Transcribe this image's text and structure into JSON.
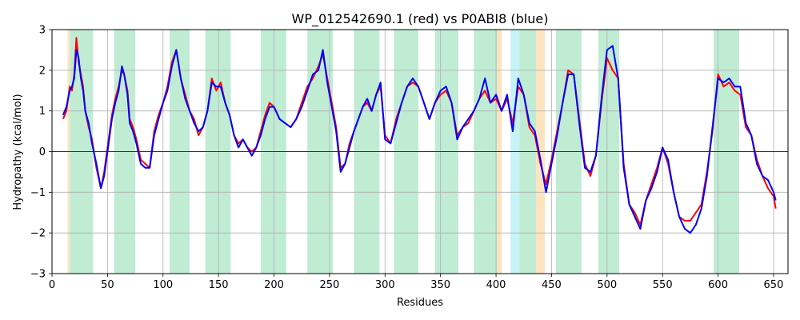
{
  "chart_data": {
    "type": "line",
    "title": "WP_012542690.1 (red) vs P0ABI8 (blue)",
    "xlabel": "Residues",
    "ylabel": "Hydropathy (kcal/mol)",
    "xlim": [
      0,
      663
    ],
    "ylim": [
      -3,
      3
    ],
    "xticks": [
      0,
      50,
      100,
      150,
      200,
      250,
      300,
      350,
      400,
      450,
      500,
      550,
      600,
      650
    ],
    "yticks": [
      -3,
      -2,
      -1,
      0,
      1,
      2,
      3
    ],
    "grid": true,
    "zero_line": true,
    "region_colors": {
      "both": "#c0ecd4",
      "red_only": "#fde4bf",
      "blue_only": "#c6f3f7"
    },
    "regions": [
      {
        "start": 14,
        "end": 16,
        "kind": "red_only"
      },
      {
        "start": 16,
        "end": 37,
        "kind": "both"
      },
      {
        "start": 56,
        "end": 75,
        "kind": "both"
      },
      {
        "start": 106,
        "end": 124,
        "kind": "both"
      },
      {
        "start": 138,
        "end": 161,
        "kind": "both"
      },
      {
        "start": 188,
        "end": 211,
        "kind": "both"
      },
      {
        "start": 230,
        "end": 253,
        "kind": "both"
      },
      {
        "start": 272,
        "end": 295,
        "kind": "both"
      },
      {
        "start": 308,
        "end": 330,
        "kind": "both"
      },
      {
        "start": 345,
        "end": 366,
        "kind": "both"
      },
      {
        "start": 380,
        "end": 401,
        "kind": "both"
      },
      {
        "start": 401,
        "end": 405,
        "kind": "red_only"
      },
      {
        "start": 413,
        "end": 421,
        "kind": "blue_only"
      },
      {
        "start": 421,
        "end": 436,
        "kind": "both"
      },
      {
        "start": 436,
        "end": 444,
        "kind": "red_only"
      },
      {
        "start": 454,
        "end": 477,
        "kind": "both"
      },
      {
        "start": 492,
        "end": 511,
        "kind": "both"
      },
      {
        "start": 596,
        "end": 619,
        "kind": "both"
      }
    ],
    "series": [
      {
        "color": "#ff0000",
        "x": [
          10,
          13,
          16,
          18,
          20,
          22,
          24,
          26,
          28,
          30,
          33,
          36,
          40,
          44,
          47,
          50,
          54,
          57,
          60,
          63,
          65,
          68,
          70,
          73,
          76,
          80,
          84,
          88,
          92,
          96,
          100,
          104,
          108,
          112,
          116,
          120,
          124,
          128,
          132,
          136,
          140,
          144,
          148,
          152,
          156,
          160,
          164,
          168,
          172,
          176,
          180,
          184,
          188,
          192,
          196,
          200,
          205,
          210,
          215,
          220,
          225,
          230,
          235,
          240,
          244,
          248,
          252,
          256,
          260,
          264,
          268,
          272,
          276,
          280,
          284,
          288,
          292,
          296,
          300,
          305,
          310,
          315,
          320,
          325,
          330,
          335,
          340,
          345,
          350,
          355,
          360,
          365,
          370,
          375,
          380,
          385,
          390,
          395,
          400,
          405,
          410,
          415,
          420,
          425,
          430,
          435,
          440,
          445,
          450,
          455,
          460,
          465,
          470,
          475,
          480,
          485,
          490,
          495,
          500,
          505,
          510,
          515,
          520,
          525,
          530,
          535,
          540,
          545,
          550,
          555,
          560,
          565,
          570,
          575,
          580,
          585,
          590,
          595,
          600,
          605,
          610,
          615,
          620,
          625,
          630,
          635,
          640,
          645,
          650,
          652
        ],
        "values": [
          0.8,
          1.0,
          1.6,
          1.5,
          1.9,
          2.8,
          2.2,
          1.9,
          1.6,
          1.0,
          0.6,
          0.3,
          -0.4,
          -0.9,
          -0.5,
          0.1,
          0.9,
          1.3,
          1.6,
          2.0,
          1.9,
          1.5,
          0.8,
          0.6,
          0.3,
          -0.2,
          -0.3,
          -0.4,
          0.5,
          0.9,
          1.2,
          1.6,
          2.2,
          2.5,
          1.8,
          1.4,
          1.0,
          0.8,
          0.4,
          0.6,
          1.0,
          1.8,
          1.5,
          1.7,
          1.2,
          0.9,
          0.4,
          0.2,
          0.3,
          0.1,
          0.0,
          0.1,
          0.5,
          0.9,
          1.2,
          1.1,
          0.8,
          0.7,
          0.6,
          0.8,
          1.2,
          1.6,
          1.8,
          2.1,
          2.4,
          1.8,
          1.2,
          0.6,
          -0.4,
          -0.3,
          0.2,
          0.5,
          0.8,
          1.1,
          1.2,
          1.0,
          1.4,
          1.6,
          0.4,
          0.2,
          0.8,
          1.2,
          1.6,
          1.7,
          1.6,
          1.2,
          0.8,
          1.2,
          1.4,
          1.5,
          1.2,
          0.4,
          0.6,
          0.7,
          1.0,
          1.3,
          1.5,
          1.2,
          1.3,
          1.0,
          1.3,
          0.7,
          1.6,
          1.4,
          0.6,
          0.4,
          -0.3,
          -0.8,
          -0.2,
          0.5,
          1.2,
          2.0,
          1.9,
          0.8,
          -0.3,
          -0.6,
          -0.1,
          1.2,
          2.3,
          2.0,
          1.8,
          -0.3,
          -1.3,
          -1.5,
          -1.8,
          -1.2,
          -0.8,
          -0.4,
          0.1,
          -0.3,
          -1.0,
          -1.6,
          -1.7,
          -1.7,
          -1.5,
          -1.3,
          -0.5,
          0.5,
          1.9,
          1.6,
          1.7,
          1.5,
          1.4,
          0.6,
          0.4,
          -0.2,
          -0.6,
          -0.9,
          -1.1,
          -1.4
        ]
      },
      {
        "color": "#0000ff",
        "x": [
          10,
          13,
          16,
          18,
          20,
          22,
          24,
          26,
          28,
          30,
          33,
          36,
          40,
          44,
          47,
          50,
          54,
          57,
          60,
          63,
          65,
          68,
          70,
          73,
          76,
          80,
          84,
          88,
          92,
          96,
          100,
          104,
          108,
          112,
          116,
          120,
          124,
          128,
          132,
          136,
          140,
          144,
          148,
          152,
          156,
          160,
          164,
          168,
          172,
          176,
          180,
          184,
          188,
          192,
          196,
          200,
          205,
          210,
          215,
          220,
          225,
          230,
          235,
          240,
          244,
          248,
          252,
          256,
          260,
          264,
          268,
          272,
          276,
          280,
          284,
          288,
          292,
          296,
          300,
          305,
          310,
          315,
          320,
          325,
          330,
          335,
          340,
          345,
          350,
          355,
          360,
          365,
          370,
          375,
          380,
          385,
          390,
          395,
          400,
          405,
          410,
          415,
          420,
          425,
          430,
          435,
          440,
          445,
          450,
          455,
          460,
          465,
          470,
          475,
          480,
          485,
          490,
          495,
          500,
          505,
          510,
          515,
          520,
          525,
          530,
          535,
          540,
          545,
          550,
          555,
          560,
          565,
          570,
          575,
          580,
          585,
          590,
          595,
          600,
          605,
          610,
          615,
          620,
          625,
          630,
          635,
          640,
          645,
          650,
          652
        ],
        "values": [
          0.9,
          1.1,
          1.5,
          1.6,
          1.8,
          2.5,
          2.3,
          1.8,
          1.5,
          1.0,
          0.7,
          0.2,
          -0.3,
          -0.9,
          -0.6,
          0.0,
          0.8,
          1.2,
          1.5,
          2.1,
          1.9,
          1.4,
          0.7,
          0.5,
          0.2,
          -0.3,
          -0.4,
          -0.4,
          0.4,
          0.8,
          1.2,
          1.5,
          2.1,
          2.5,
          1.8,
          1.3,
          1.0,
          0.7,
          0.5,
          0.6,
          1.0,
          1.7,
          1.6,
          1.6,
          1.2,
          0.9,
          0.4,
          0.1,
          0.3,
          0.1,
          -0.1,
          0.1,
          0.4,
          0.8,
          1.1,
          1.1,
          0.8,
          0.7,
          0.6,
          0.8,
          1.1,
          1.5,
          1.9,
          2.0,
          2.5,
          1.7,
          1.1,
          0.5,
          -0.5,
          -0.3,
          0.1,
          0.5,
          0.8,
          1.1,
          1.3,
          1.0,
          1.4,
          1.7,
          0.3,
          0.2,
          0.7,
          1.2,
          1.6,
          1.8,
          1.6,
          1.2,
          0.8,
          1.2,
          1.5,
          1.6,
          1.2,
          0.3,
          0.6,
          0.8,
          1.0,
          1.3,
          1.8,
          1.2,
          1.4,
          1.0,
          1.4,
          0.5,
          1.8,
          1.4,
          0.7,
          0.5,
          -0.2,
          -1.0,
          -0.3,
          0.4,
          1.2,
          1.9,
          1.9,
          0.7,
          -0.4,
          -0.5,
          -0.1,
          1.3,
          2.5,
          2.6,
          1.8,
          -0.4,
          -1.3,
          -1.6,
          -1.9,
          -1.2,
          -0.9,
          -0.5,
          0.1,
          -0.2,
          -1.0,
          -1.6,
          -1.9,
          -2.0,
          -1.8,
          -1.4,
          -0.6,
          0.6,
          1.8,
          1.7,
          1.8,
          1.6,
          1.6,
          0.7,
          0.4,
          -0.3,
          -0.6,
          -0.7,
          -1.0,
          -1.2
        ]
      }
    ]
  }
}
